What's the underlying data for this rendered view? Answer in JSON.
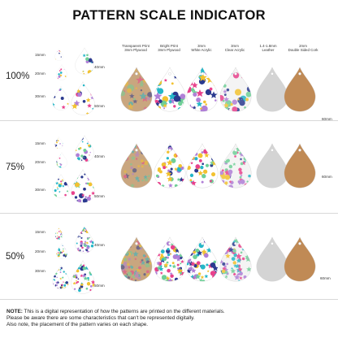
{
  "title": "PATTERN SCALE INDICATOR",
  "columns": [
    {
      "line1": "Transparent Print",
      "line2": "3mm Plywood"
    },
    {
      "line1": "Bright Print",
      "line2": "3mm Plywood"
    },
    {
      "line1": "3mm",
      "line2": "White Acrylic"
    },
    {
      "line1": "3mm",
      "line2": "Clear Acrylic"
    },
    {
      "line1": "1.4-1.8mm",
      "line2": "Leather"
    },
    {
      "line1": "2mm",
      "line2": "Double Sided Cork"
    }
  ],
  "sections": [
    {
      "scale": "100%",
      "sizes": {
        "s15": "15mm",
        "s20": "20mm",
        "s30": "30mm",
        "s40": "40mm",
        "s50": "50mm",
        "s60": "60mm"
      }
    },
    {
      "scale": "75%",
      "sizes": {
        "s15": "15mm",
        "s20": "20mm",
        "s30": "30mm",
        "s40": "40mm",
        "s50": "50mm",
        "s60": "60mm"
      }
    },
    {
      "scale": "50%",
      "sizes": {
        "s15": "15mm",
        "s20": "20mm",
        "s30": "30mm",
        "s40": "40mm",
        "s50": "50mm",
        "s60": "60mm"
      }
    }
  ],
  "note": {
    "label": "NOTE:",
    "line1": " This is a digital representation of how the patterns are printed on the different materials.",
    "line2": "Please be aware there are some characteristics that can't be represented digitally.",
    "line3": "Also note, the placement of the pattern varies on each shape."
  },
  "colors": {
    "plywood": "#c9a67f",
    "cork": "#c08a55",
    "leather": "#d4d4d4",
    "white": "#ffffff",
    "clear": "#f4f4f4",
    "pattern": [
      "#2b3a8f",
      "#e8418c",
      "#25b7c8",
      "#f2c230",
      "#6fcf97",
      "#b07fd6"
    ]
  }
}
